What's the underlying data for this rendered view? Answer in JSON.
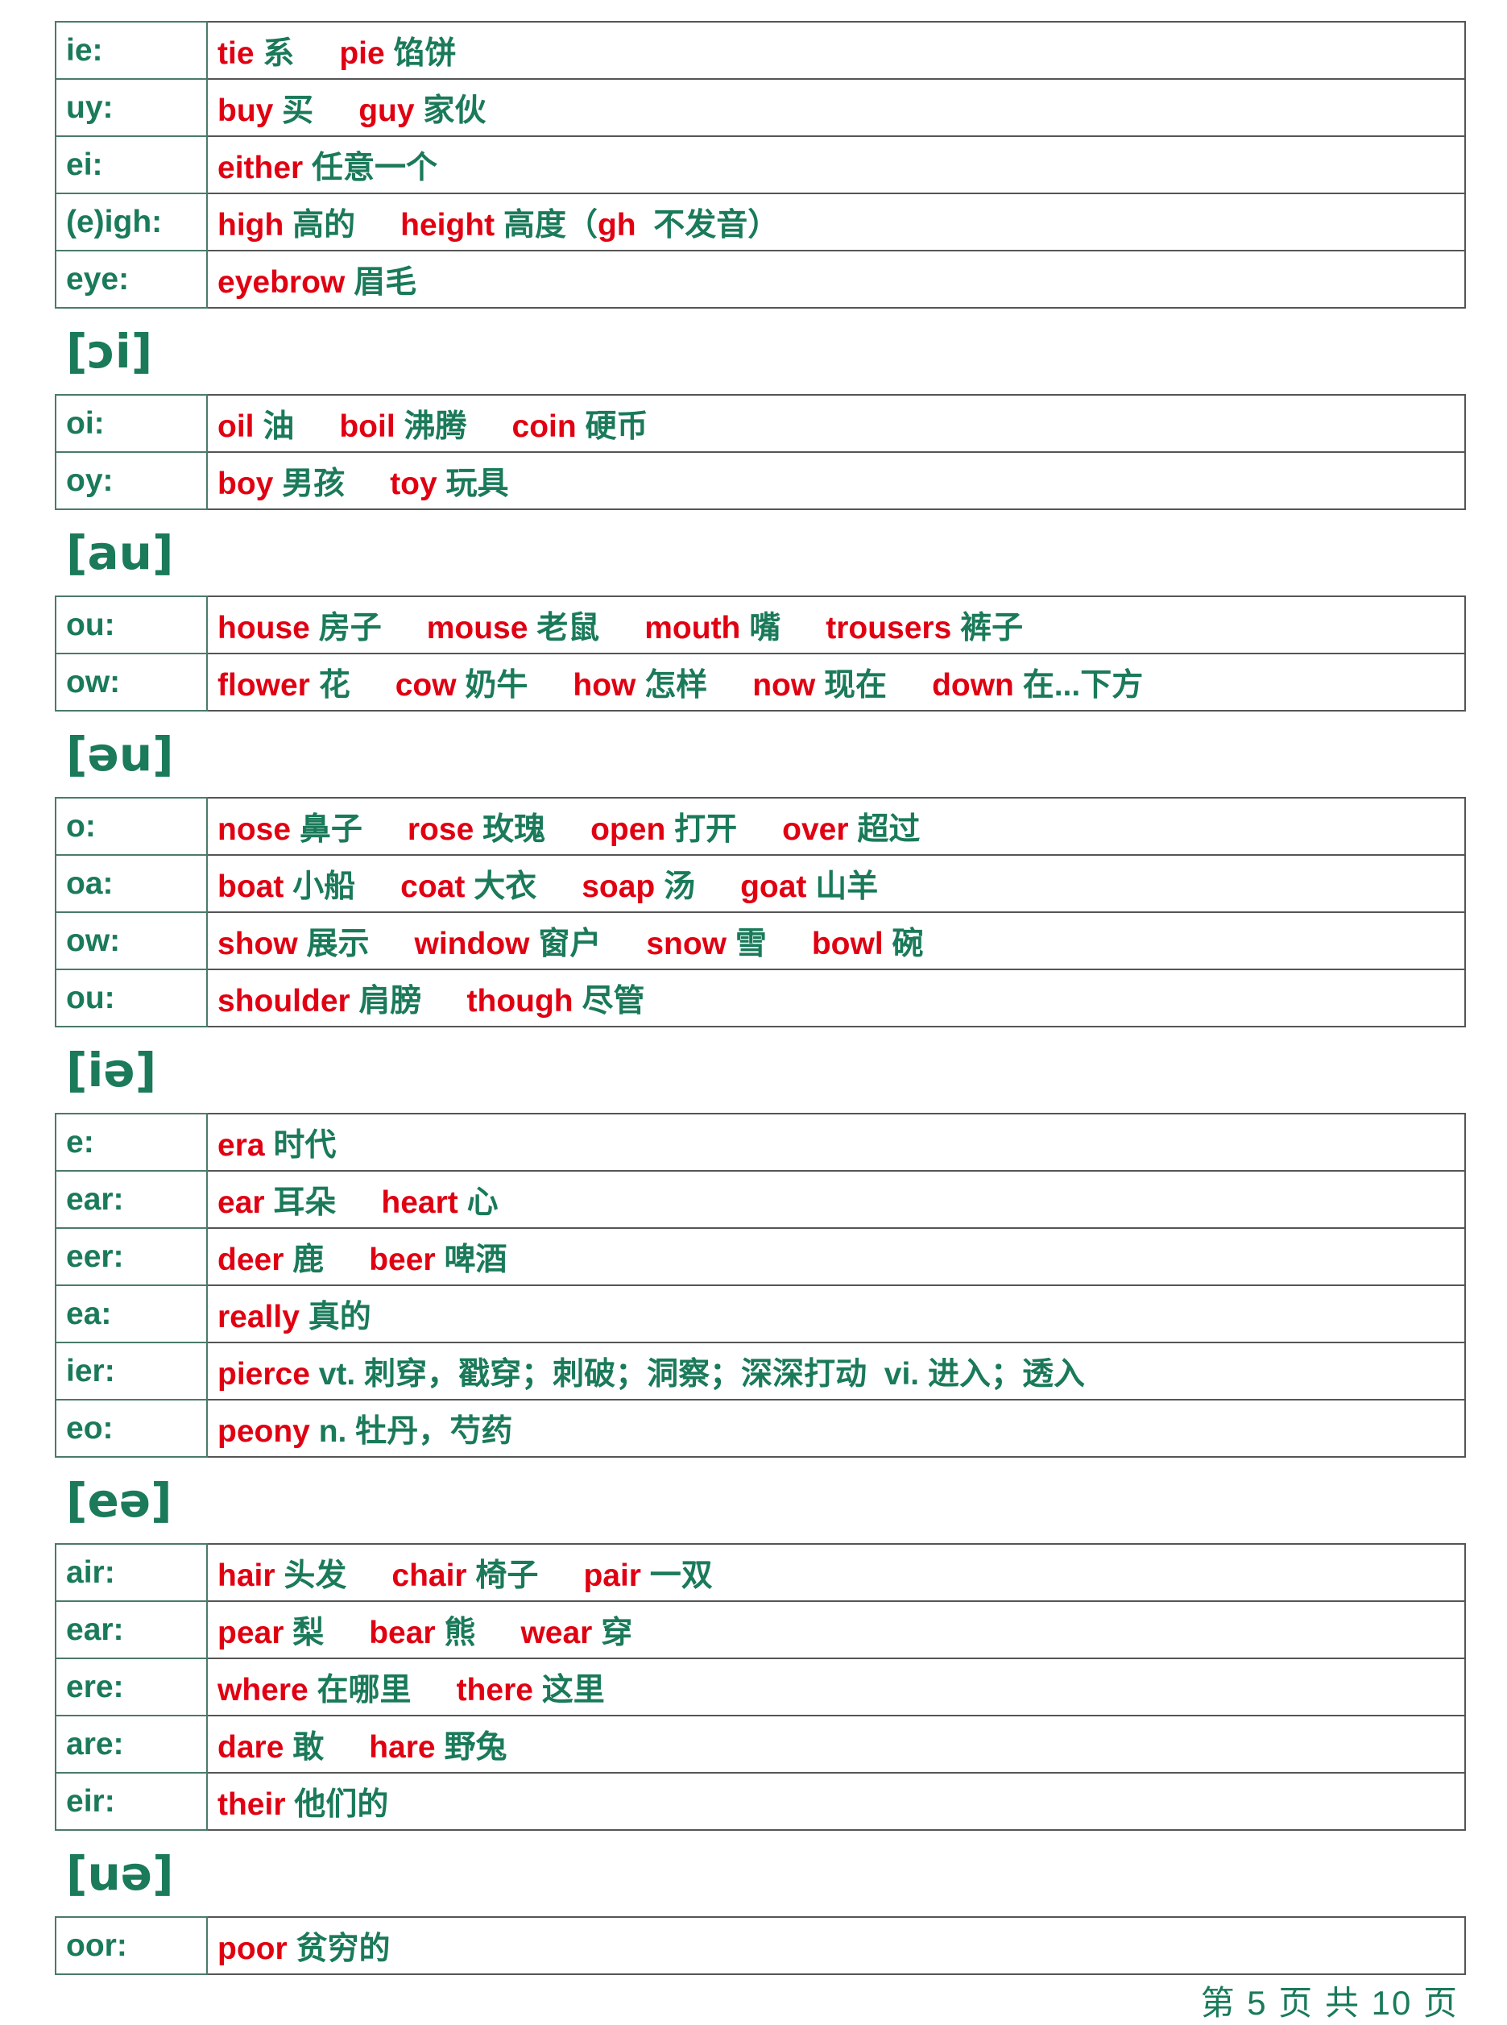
{
  "colors": {
    "english": "#e00012",
    "chinese": "#1a7a5a",
    "border": "#555555"
  },
  "sections": [
    {
      "header": "",
      "rows": [
        {
          "label": "ie:",
          "items": [
            [
              [
                "tie",
                "r"
              ],
              [
                " 系",
                "g"
              ]
            ],
            [
              [
                "pie",
                "r"
              ],
              [
                " 馅饼",
                "g"
              ]
            ]
          ]
        },
        {
          "label": "uy:",
          "items": [
            [
              [
                "buy",
                "r"
              ],
              [
                " 买",
                "g"
              ]
            ],
            [
              [
                "guy",
                "r"
              ],
              [
                " 家伙",
                "g"
              ]
            ]
          ]
        },
        {
          "label": "ei:",
          "items": [
            [
              [
                "either",
                "r"
              ],
              [
                " 任意一个",
                "g"
              ]
            ]
          ]
        },
        {
          "label": "(e)igh:",
          "items": [
            [
              [
                "high",
                "r"
              ],
              [
                " 高的",
                "g"
              ]
            ],
            [
              [
                "height",
                "r"
              ],
              [
                " 高度（",
                "g"
              ],
              [
                "gh",
                "r"
              ],
              [
                "  不发音）",
                "g"
              ]
            ]
          ]
        },
        {
          "label": "eye:",
          "items": [
            [
              [
                "eyebrow",
                "r"
              ],
              [
                " 眉毛",
                "g"
              ]
            ]
          ]
        }
      ]
    },
    {
      "header": "[ɔi]",
      "rows": [
        {
          "label": "oi:",
          "items": [
            [
              [
                "oil",
                "r"
              ],
              [
                " 油",
                "g"
              ]
            ],
            [
              [
                "boil",
                "r"
              ],
              [
                " 沸腾",
                "g"
              ]
            ],
            [
              [
                "coin",
                "r"
              ],
              [
                " 硬币",
                "g"
              ]
            ]
          ]
        },
        {
          "label": "oy:",
          "items": [
            [
              [
                "boy",
                "r"
              ],
              [
                " 男孩",
                "g"
              ]
            ],
            [
              [
                "toy",
                "r"
              ],
              [
                " 玩具",
                "g"
              ]
            ]
          ]
        }
      ]
    },
    {
      "header": "[au]",
      "rows": [
        {
          "label": "ou:",
          "items": [
            [
              [
                "house",
                "r"
              ],
              [
                " 房子",
                "g"
              ]
            ],
            [
              [
                "mouse",
                "r"
              ],
              [
                " 老鼠",
                "g"
              ]
            ],
            [
              [
                "mouth",
                "r"
              ],
              [
                " 嘴",
                "g"
              ]
            ],
            [
              [
                "trousers",
                "r"
              ],
              [
                " 裤子",
                "g"
              ]
            ]
          ]
        },
        {
          "label": "ow:",
          "items": [
            [
              [
                "flower",
                "r"
              ],
              [
                " 花",
                "g"
              ]
            ],
            [
              [
                "cow",
                "r"
              ],
              [
                " 奶牛",
                "g"
              ]
            ],
            [
              [
                "how",
                "r"
              ],
              [
                " 怎样",
                "g"
              ]
            ],
            [
              [
                "now",
                "r"
              ],
              [
                " 现在",
                "g"
              ]
            ],
            [
              [
                "down",
                "r"
              ],
              [
                " 在...下方",
                "g"
              ]
            ]
          ]
        }
      ]
    },
    {
      "header": "[əu]",
      "rows": [
        {
          "label": "o:",
          "items": [
            [
              [
                "nose",
                "r"
              ],
              [
                " 鼻子",
                "g"
              ]
            ],
            [
              [
                "rose",
                "r"
              ],
              [
                " 玫瑰",
                "g"
              ]
            ],
            [
              [
                "open",
                "r"
              ],
              [
                " 打开",
                "g"
              ]
            ],
            [
              [
                "over",
                "r"
              ],
              [
                " 超过",
                "g"
              ]
            ]
          ]
        },
        {
          "label": "oa:",
          "items": [
            [
              [
                "boat",
                "r"
              ],
              [
                " 小船",
                "g"
              ]
            ],
            [
              [
                "coat",
                "r"
              ],
              [
                " 大衣",
                "g"
              ]
            ],
            [
              [
                "soap",
                "r"
              ],
              [
                " 汤",
                "g"
              ]
            ],
            [
              [
                "goat",
                "r"
              ],
              [
                " 山羊",
                "g"
              ]
            ]
          ]
        },
        {
          "label": "ow:",
          "items": [
            [
              [
                "show",
                "r"
              ],
              [
                " 展示",
                "g"
              ]
            ],
            [
              [
                "window",
                "r"
              ],
              [
                " 窗户",
                "g"
              ]
            ],
            [
              [
                "snow",
                "r"
              ],
              [
                " 雪",
                "g"
              ]
            ],
            [
              [
                "bowl",
                "r"
              ],
              [
                " 碗",
                "g"
              ]
            ]
          ]
        },
        {
          "label": "ou:",
          "items": [
            [
              [
                "shoulder",
                "r"
              ],
              [
                " 肩膀",
                "g"
              ]
            ],
            [
              [
                "though",
                "r"
              ],
              [
                " 尽管",
                "g"
              ]
            ]
          ]
        }
      ]
    },
    {
      "header": "[iə]",
      "rows": [
        {
          "label": "e:",
          "items": [
            [
              [
                "era",
                "r"
              ],
              [
                " 时代",
                "g"
              ]
            ]
          ]
        },
        {
          "label": "ear:",
          "items": [
            [
              [
                "ear",
                "r"
              ],
              [
                " 耳朵",
                "g"
              ]
            ],
            [
              [
                "heart",
                "r"
              ],
              [
                " 心",
                "g"
              ]
            ]
          ]
        },
        {
          "label": "eer:",
          "items": [
            [
              [
                "deer",
                "r"
              ],
              [
                " 鹿",
                "g"
              ]
            ],
            [
              [
                "beer",
                "r"
              ],
              [
                " 啤酒",
                "g"
              ]
            ]
          ]
        },
        {
          "label": "ea:",
          "items": [
            [
              [
                "really",
                "r"
              ],
              [
                " 真的",
                "g"
              ]
            ]
          ]
        },
        {
          "label": "ier:",
          "items": [
            [
              [
                "pierce",
                "r"
              ],
              [
                " vt. 刺穿，戳穿；刺破；洞察；深深打动  vi. 进入；透入",
                "g"
              ]
            ]
          ]
        },
        {
          "label": "eo:",
          "items": [
            [
              [
                "peony",
                "r"
              ],
              [
                " n. 牡丹，芍药",
                "g"
              ]
            ]
          ]
        }
      ]
    },
    {
      "header": "[eə]",
      "rows": [
        {
          "label": "air:",
          "items": [
            [
              [
                "hair",
                "r"
              ],
              [
                " 头发",
                "g"
              ]
            ],
            [
              [
                "chair",
                "r"
              ],
              [
                " 椅子",
                "g"
              ]
            ],
            [
              [
                "pair",
                "r"
              ],
              [
                " 一双",
                "g"
              ]
            ]
          ]
        },
        {
          "label": "ear:",
          "items": [
            [
              [
                "pear",
                "r"
              ],
              [
                " 梨",
                "g"
              ]
            ],
            [
              [
                "bear",
                "r"
              ],
              [
                " 熊",
                "g"
              ]
            ],
            [
              [
                "wear",
                "r"
              ],
              [
                " 穿",
                "g"
              ]
            ]
          ]
        },
        {
          "label": "ere:",
          "items": [
            [
              [
                "where",
                "r"
              ],
              [
                " 在哪里",
                "g"
              ]
            ],
            [
              [
                "there",
                "r"
              ],
              [
                " 这里",
                "g"
              ]
            ]
          ]
        },
        {
          "label": "are:",
          "items": [
            [
              [
                "dare",
                "r"
              ],
              [
                " 敢",
                "g"
              ]
            ],
            [
              [
                "hare",
                "r"
              ],
              [
                " 野兔",
                "g"
              ]
            ]
          ]
        },
        {
          "label": "eir:",
          "items": [
            [
              [
                "their",
                "r"
              ],
              [
                " 他们的",
                "g"
              ]
            ]
          ]
        }
      ]
    },
    {
      "header": "[uə]",
      "rows": [
        {
          "label": "oor:",
          "items": [
            [
              [
                "poor",
                "r"
              ],
              [
                " 贫穷的",
                "g"
              ]
            ]
          ]
        }
      ]
    }
  ],
  "footer": "第 5 页 共 10 页"
}
